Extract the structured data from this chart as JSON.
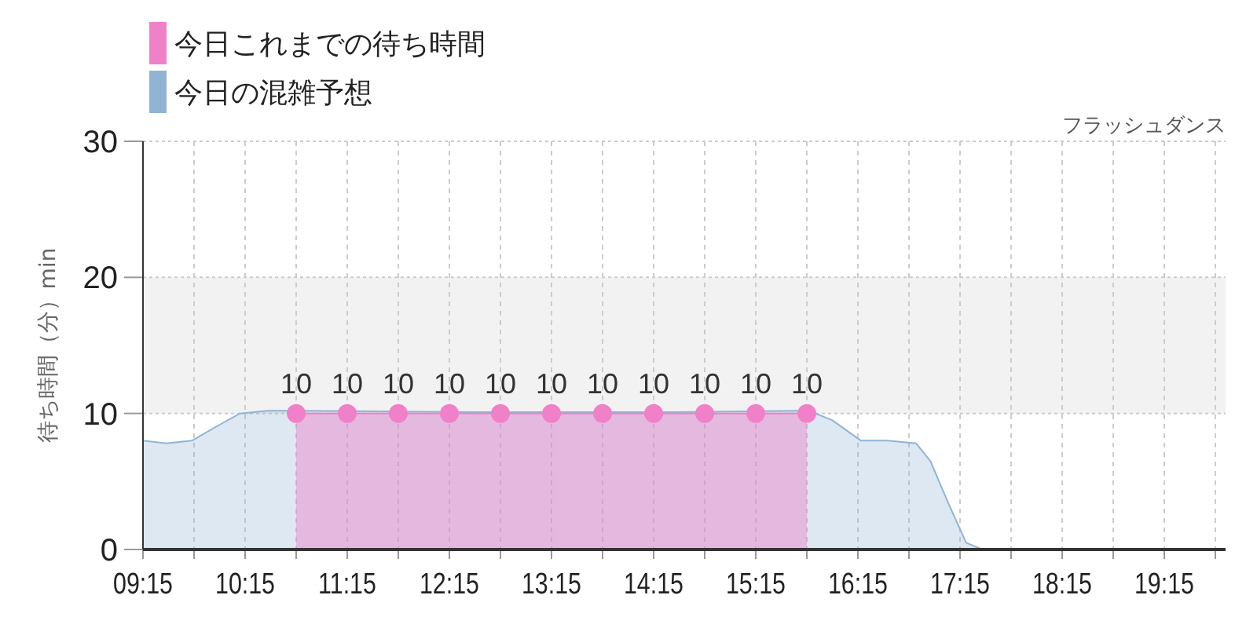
{
  "chart_data": {
    "type": "area",
    "subtitle": "フラッシュダンス",
    "ylabel": "待ち時間（分）min",
    "xlim": [
      9.25,
      19.85
    ],
    "ylim": [
      0,
      30
    ],
    "yticks": [
      0,
      10,
      20,
      30
    ],
    "xticks": [
      {
        "value": 9.25,
        "label": "09:15"
      },
      {
        "value": 9.75,
        "label": null
      },
      {
        "value": 10.25,
        "label": "10:15"
      },
      {
        "value": 10.75,
        "label": null
      },
      {
        "value": 11.25,
        "label": "11:15"
      },
      {
        "value": 11.75,
        "label": null
      },
      {
        "value": 12.25,
        "label": "12:15"
      },
      {
        "value": 12.75,
        "label": null
      },
      {
        "value": 13.25,
        "label": "13:15"
      },
      {
        "value": 13.75,
        "label": null
      },
      {
        "value": 14.25,
        "label": "14:15"
      },
      {
        "value": 14.75,
        "label": null
      },
      {
        "value": 15.25,
        "label": "15:15"
      },
      {
        "value": 15.75,
        "label": null
      },
      {
        "value": 16.25,
        "label": "16:15"
      },
      {
        "value": 16.75,
        "label": null
      },
      {
        "value": 17.25,
        "label": "17:15"
      },
      {
        "value": 17.75,
        "label": null
      },
      {
        "value": 18.25,
        "label": "18:15"
      },
      {
        "value": 18.75,
        "label": null
      },
      {
        "value": 19.25,
        "label": "19:15"
      },
      {
        "value": 19.75,
        "label": null
      }
    ],
    "grid": true,
    "legend": "top left",
    "bands": [
      {
        "axis": "y",
        "from": 10,
        "to": 20,
        "color": "#f2f2f2"
      }
    ],
    "series": [
      {
        "name": "今日の混雑予想",
        "color": "#90b4d4",
        "x": [
          9.25,
          9.48,
          9.73,
          9.96,
          10.2,
          10.47,
          10.77,
          12.47,
          14.47,
          15.77,
          16.0,
          16.28,
          16.54,
          16.82,
          16.96,
          17.13,
          17.31,
          17.47,
          19.85
        ],
        "values": [
          8.0,
          7.8,
          8.0,
          9.0,
          10.0,
          10.2,
          10.2,
          10.1,
          10.1,
          10.2,
          9.5,
          8.0,
          8.0,
          7.8,
          6.5,
          3.5,
          0.5,
          0,
          0
        ],
        "marker": "none"
      },
      {
        "name": "今日これまでの待ち時間",
        "color": "#f080c8",
        "x": [
          10.75,
          11.25,
          11.75,
          12.25,
          12.75,
          13.25,
          13.75,
          14.25,
          14.75,
          15.25,
          15.75
        ],
        "values": [
          10,
          10,
          10,
          10,
          10,
          10,
          10,
          10,
          10,
          10,
          10
        ],
        "marker": "circle",
        "data_labels": true
      }
    ]
  }
}
